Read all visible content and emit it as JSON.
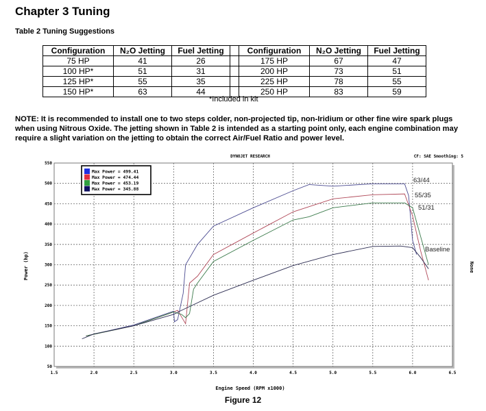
{
  "chapter_title": "Chapter 3  Tuning",
  "table_title": "Table 2  Tuning Suggestions",
  "table": {
    "headers": [
      "Configuration",
      "N₂O Jetting",
      "Fuel Jetting",
      "Configuration",
      "N₂O Jetting",
      "Fuel Jetting"
    ],
    "rows": [
      [
        "75 HP",
        "41",
        "26",
        "175 HP",
        "67",
        "47"
      ],
      [
        "100 HP*",
        "51",
        "31",
        "200 HP",
        "73",
        "51"
      ],
      [
        "125 HP*",
        "55",
        "35",
        "225 HP",
        "78",
        "55"
      ],
      [
        "150 HP*",
        "63",
        "44",
        "250 HP",
        "83",
        "59"
      ]
    ],
    "footnote": "*Included in kit"
  },
  "note": "NOTE:  It is recommended to install one to two steps colder, non-projected tip, non-Iridium or other fine wire spark plugs when using Nitrous Oxide. The jetting shown in Table 2 is intended as a starting point only, each engine combination may require a slight variation on the jetting to obtain the correct Air/Fuel Ratio and power level.",
  "figure_caption": "Figure 12",
  "chart_data": {
    "type": "line",
    "title": "DYNOJET RESEARCH",
    "header_right": "CF: SAE  Smoothing: 5",
    "xlabel": "Engine Speed (RPM x1000)",
    "ylabel": "Power (hp)",
    "right_label": "None",
    "xlim": [
      1.5,
      6.5
    ],
    "ylim": [
      50,
      550
    ],
    "xticks": [
      "1.5",
      "2.0",
      "2.5",
      "3.0",
      "3.5",
      "4.0",
      "4.5",
      "5.0",
      "5.5",
      "6.0",
      "6.5"
    ],
    "yticks": [
      "50",
      "100",
      "150",
      "200",
      "250",
      "300",
      "350",
      "400",
      "450",
      "500",
      "550"
    ],
    "grid": true,
    "legend_position": "top-left",
    "series": [
      {
        "name": "Max Power = 499.41",
        "label": "63/44",
        "color": "#4a4a90",
        "points": [
          [
            1.9,
            125
          ],
          [
            2.5,
            152
          ],
          [
            3.0,
            186
          ],
          [
            3.01,
            160
          ],
          [
            3.05,
            165
          ],
          [
            3.12,
            230
          ],
          [
            3.15,
            300
          ],
          [
            3.3,
            350
          ],
          [
            3.5,
            395
          ],
          [
            4.0,
            440
          ],
          [
            4.5,
            482
          ],
          [
            4.7,
            497
          ],
          [
            5.0,
            493
          ],
          [
            5.5,
            499
          ],
          [
            5.9,
            499
          ],
          [
            5.95,
            470
          ],
          [
            6.0,
            360
          ],
          [
            6.05,
            325
          ]
        ]
      },
      {
        "name": "Max Power = 474.44",
        "label": "55/35",
        "color": "#b04858",
        "points": [
          [
            1.9,
            125
          ],
          [
            2.5,
            150
          ],
          [
            3.0,
            184
          ],
          [
            3.05,
            188
          ],
          [
            3.12,
            165
          ],
          [
            3.15,
            155
          ],
          [
            3.2,
            255
          ],
          [
            3.3,
            272
          ],
          [
            3.5,
            325
          ],
          [
            4.0,
            378
          ],
          [
            4.5,
            430
          ],
          [
            5.0,
            462
          ],
          [
            5.5,
            472
          ],
          [
            5.9,
            474
          ],
          [
            6.0,
            420
          ],
          [
            6.1,
            335
          ],
          [
            6.2,
            262
          ]
        ]
      },
      {
        "name": "Max Power = 453.19",
        "label": "51/31",
        "color": "#3a7a4a",
        "points": [
          [
            1.9,
            125
          ],
          [
            2.5,
            150
          ],
          [
            3.0,
            184
          ],
          [
            3.1,
            178
          ],
          [
            3.15,
            170
          ],
          [
            3.2,
            180
          ],
          [
            3.25,
            240
          ],
          [
            3.3,
            255
          ],
          [
            3.5,
            308
          ],
          [
            4.0,
            360
          ],
          [
            4.5,
            410
          ],
          [
            4.7,
            418
          ],
          [
            5.0,
            440
          ],
          [
            5.5,
            452
          ],
          [
            5.9,
            452
          ],
          [
            6.0,
            440
          ],
          [
            6.1,
            370
          ],
          [
            6.2,
            300
          ]
        ]
      },
      {
        "name": "Max Power = 345.88",
        "label": "Baseline",
        "color": "#2a2a50",
        "points": [
          [
            1.85,
            118
          ],
          [
            2.0,
            130
          ],
          [
            2.5,
            150
          ],
          [
            3.0,
            178
          ],
          [
            3.1,
            188
          ],
          [
            3.5,
            225
          ],
          [
            4.0,
            262
          ],
          [
            4.5,
            298
          ],
          [
            5.0,
            325
          ],
          [
            5.5,
            345
          ],
          [
            5.85,
            346
          ],
          [
            6.0,
            342
          ],
          [
            6.1,
            318
          ],
          [
            6.2,
            290
          ]
        ]
      }
    ]
  }
}
